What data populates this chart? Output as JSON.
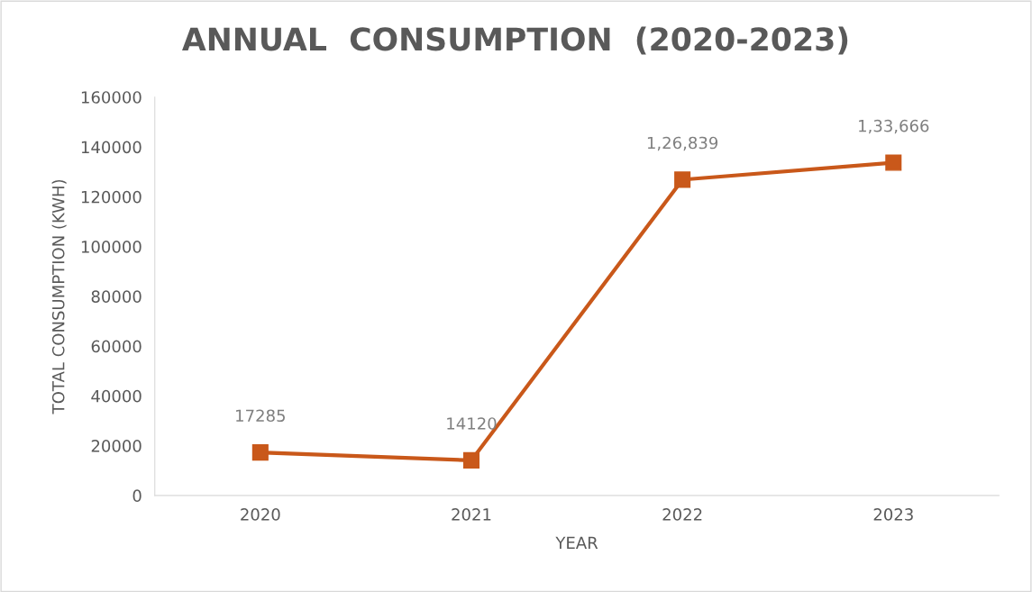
{
  "chart_data": {
    "type": "line",
    "title": "ANNUAL  CONSUMPTION  (2020-2023)",
    "xlabel": "YEAR",
    "ylabel": "TOTAL CONSUMPTION (KWH)",
    "categories": [
      "2020",
      "2021",
      "2022",
      "2023"
    ],
    "series": [
      {
        "color": "#c9581a",
        "values": [
          17285,
          14120,
          126839,
          133666
        ],
        "value_labels": [
          "17285",
          "14120",
          "1,26,839",
          "1,33,666"
        ]
      }
    ],
    "ylim": [
      0,
      160000
    ],
    "yticks": [
      0,
      20000,
      40000,
      60000,
      80000,
      100000,
      120000,
      140000,
      160000
    ],
    "grid": false,
    "marker": "square",
    "line_style": "solid"
  }
}
